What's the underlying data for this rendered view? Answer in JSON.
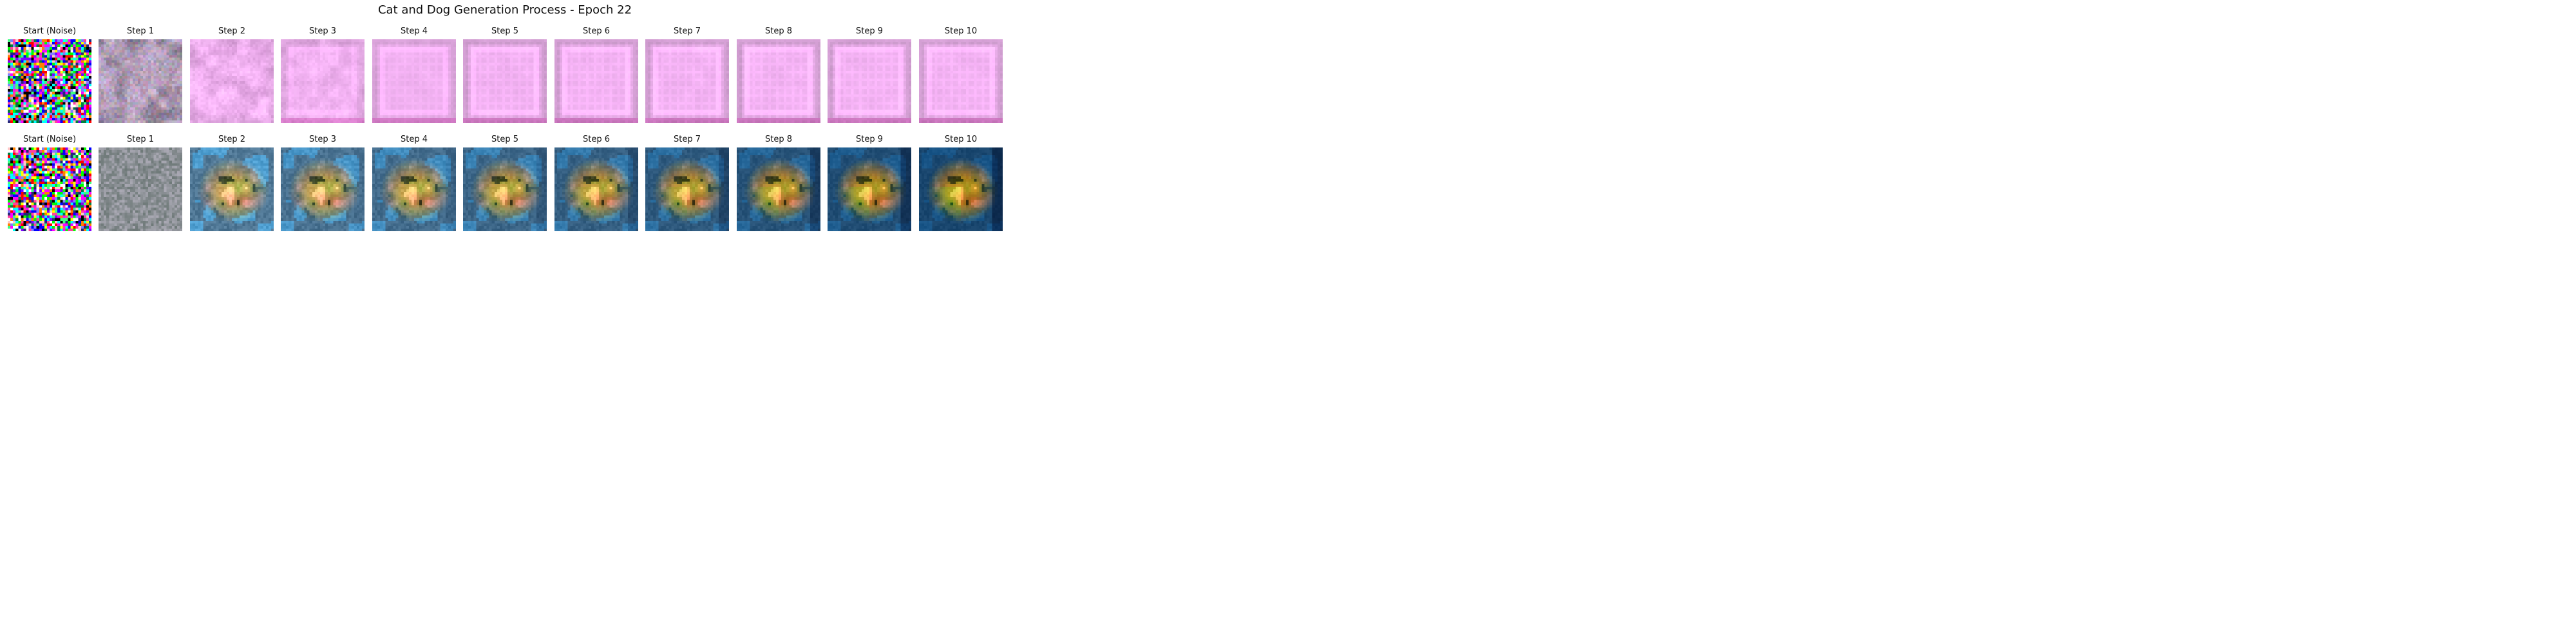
{
  "figure": {
    "title": "Cat and Dog Generation Process - Epoch 22"
  },
  "rows": [
    {
      "panels": [
        {
          "title": "Start (Noise)",
          "image": "random-color-noise"
        },
        {
          "title": "Step 1",
          "image": "muted-purple-gray-noise"
        },
        {
          "title": "Step 2",
          "image": "pink-lilac-texture"
        },
        {
          "title": "Step 3",
          "image": "pink-lilac-texture"
        },
        {
          "title": "Step 4",
          "image": "pink-square-frame"
        },
        {
          "title": "Step 5",
          "image": "pink-square-frame"
        },
        {
          "title": "Step 6",
          "image": "pink-square-frame"
        },
        {
          "title": "Step 7",
          "image": "pink-square-frame"
        },
        {
          "title": "Step 8",
          "image": "pink-square-frame"
        },
        {
          "title": "Step 9",
          "image": "pink-square-frame"
        },
        {
          "title": "Step 10",
          "image": "pink-square-frame"
        }
      ]
    },
    {
      "panels": [
        {
          "title": "Start (Noise)",
          "image": "random-color-noise"
        },
        {
          "title": "Step 1",
          "image": "muted-blue-gray-noise"
        },
        {
          "title": "Step 2",
          "image": "blurry-animal-blue-orange"
        },
        {
          "title": "Step 3",
          "image": "blurry-animal-blue-orange"
        },
        {
          "title": "Step 4",
          "image": "blurry-animal-blue-orange"
        },
        {
          "title": "Step 5",
          "image": "blurry-animal-blue-orange"
        },
        {
          "title": "Step 6",
          "image": "blurry-animal-blue-orange"
        },
        {
          "title": "Step 7",
          "image": "blurry-animal-dark-blue-green"
        },
        {
          "title": "Step 8",
          "image": "blurry-animal-dark-blue-green"
        },
        {
          "title": "Step 9",
          "image": "blurry-animal-dark-blue-green"
        },
        {
          "title": "Step 10",
          "image": "blurry-animal-dark-blue-green"
        }
      ]
    }
  ]
}
